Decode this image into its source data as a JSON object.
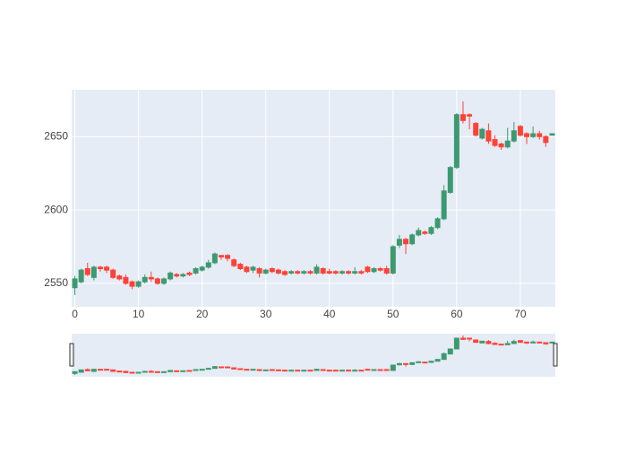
{
  "chart_data": {
    "type": "candlestick",
    "x": [
      0,
      1,
      2,
      3,
      4,
      5,
      6,
      7,
      8,
      9,
      10,
      11,
      12,
      13,
      14,
      15,
      16,
      17,
      18,
      19,
      20,
      21,
      22,
      23,
      24,
      25,
      26,
      27,
      28,
      29,
      30,
      31,
      32,
      33,
      34,
      35,
      36,
      37,
      38,
      39,
      40,
      41,
      42,
      43,
      44,
      45,
      46,
      47,
      48,
      49,
      50,
      51,
      52,
      53,
      54,
      55,
      56,
      57,
      58,
      59,
      60,
      61,
      62,
      63,
      64,
      65,
      66,
      67,
      68,
      69,
      70,
      71,
      72,
      73,
      74,
      75
    ],
    "open": [
      2547,
      2551,
      2560,
      2554,
      2561,
      2561,
      2559,
      2555,
      2554,
      2551,
      2548,
      2551,
      2554,
      2553,
      2550,
      2553,
      2556,
      2555,
      2557,
      2557,
      2559,
      2561,
      2564,
      2569,
      2569,
      2566,
      2563,
      2561,
      2559,
      2560,
      2557,
      2560,
      2559,
      2558,
      2557,
      2558,
      2557,
      2558,
      2557,
      2560,
      2558,
      2558,
      2557,
      2558,
      2557,
      2558,
      2561,
      2558,
      2560,
      2560,
      2557,
      2576,
      2580,
      2577,
      2583,
      2585,
      2584,
      2588,
      2594,
      2612,
      2629,
      2665,
      2665,
      2659,
      2649,
      2654,
      2648,
      2645,
      2643,
      2647,
      2657,
      2652,
      2650,
      2652,
      2650,
      2651
    ],
    "high": [
      2555,
      2560,
      2564,
      2562,
      2562,
      2562,
      2560,
      2556,
      2556,
      2552,
      2552,
      2556,
      2558,
      2554,
      2554,
      2558,
      2557,
      2557,
      2558,
      2561,
      2562,
      2566,
      2571,
      2569,
      2570,
      2567,
      2564,
      2562,
      2562,
      2561,
      2560,
      2561,
      2560,
      2559,
      2559,
      2559,
      2559,
      2559,
      2563,
      2561,
      2560,
      2559,
      2559,
      2559,
      2561,
      2559,
      2562,
      2561,
      2561,
      2562,
      2576,
      2583,
      2581,
      2584,
      2588,
      2586,
      2589,
      2595,
      2617,
      2630,
      2666,
      2674,
      2666,
      2660,
      2656,
      2659,
      2651,
      2646,
      2656,
      2660,
      2658,
      2653,
      2657,
      2654,
      2651,
      2652
    ],
    "low": [
      2542,
      2550,
      2555,
      2552,
      2558,
      2557,
      2553,
      2552,
      2549,
      2546,
      2547,
      2550,
      2551,
      2549,
      2549,
      2552,
      2554,
      2554,
      2555,
      2556,
      2558,
      2560,
      2563,
      2566,
      2565,
      2561,
      2559,
      2557,
      2557,
      2554,
      2556,
      2557,
      2556,
      2555,
      2556,
      2556,
      2556,
      2556,
      2556,
      2556,
      2556,
      2556,
      2556,
      2556,
      2556,
      2556,
      2557,
      2557,
      2558,
      2556,
      2556,
      2574,
      2570,
      2576,
      2582,
      2583,
      2583,
      2587,
      2593,
      2611,
      2628,
      2659,
      2655,
      2650,
      2648,
      2645,
      2643,
      2641,
      2642,
      2646,
      2650,
      2645,
      2649,
      2648,
      2643,
      2651
    ],
    "close": [
      2553,
      2559,
      2556,
      2561,
      2560,
      2559,
      2554,
      2553,
      2550,
      2548,
      2551,
      2554,
      2553,
      2550,
      2553,
      2557,
      2555,
      2556,
      2556,
      2560,
      2561,
      2564,
      2570,
      2568,
      2567,
      2562,
      2560,
      2558,
      2561,
      2557,
      2559,
      2558,
      2557,
      2556,
      2558,
      2557,
      2558,
      2557,
      2561,
      2557,
      2557,
      2557,
      2558,
      2557,
      2558,
      2557,
      2558,
      2560,
      2559,
      2557,
      2575,
      2580,
      2577,
      2583,
      2586,
      2584,
      2588,
      2594,
      2613,
      2629,
      2665,
      2661,
      2664,
      2651,
      2655,
      2647,
      2644,
      2643,
      2647,
      2654,
      2651,
      2650,
      2652,
      2650,
      2646,
      2652
    ],
    "increasing_color": "#3D9970",
    "decreasing_color": "#FF4136",
    "xlim": [
      -0.5,
      75.5
    ],
    "ylim": [
      2534,
      2682
    ],
    "xticks": [
      0,
      10,
      20,
      30,
      40,
      50,
      60,
      70
    ],
    "yticks": [
      2550,
      2600,
      2650
    ],
    "grid": true,
    "rangeslider": true
  }
}
